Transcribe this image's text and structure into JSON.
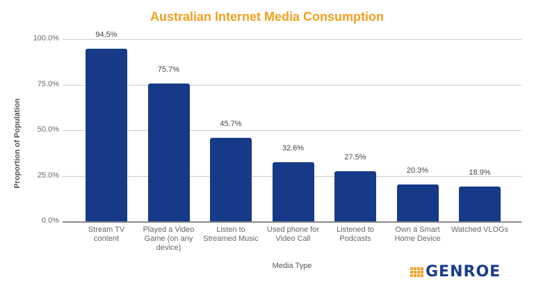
{
  "chart_data": {
    "type": "bar",
    "title": "Australian Internet Media Consumption",
    "xlabel": "Media Type",
    "ylabel": "Proportion of Population",
    "ylim": [
      0,
      100
    ],
    "yticks": [
      "0.0%",
      "25.0%",
      "50.0%",
      "75.0%",
      "100.0%"
    ],
    "grid": true,
    "categories": [
      "Stream TV content",
      "Played a Video Game (on any device)",
      "Listen to Streamed Music",
      "Used phone for Video Call",
      "Listened to Podcasts",
      "Own a Smart Home Device",
      "Watched VLOGs"
    ],
    "values": [
      94.5,
      75.7,
      45.7,
      32.6,
      27.5,
      20.3,
      18.9
    ],
    "value_labels": [
      "94.5%",
      "75.7%",
      "45.7%",
      "32.6%",
      "27.5%",
      "20.3%",
      "18.9%"
    ],
    "bar_color": "#163a87"
  },
  "branding": {
    "logo_text": "GENROE",
    "accent": "#f4a020"
  }
}
